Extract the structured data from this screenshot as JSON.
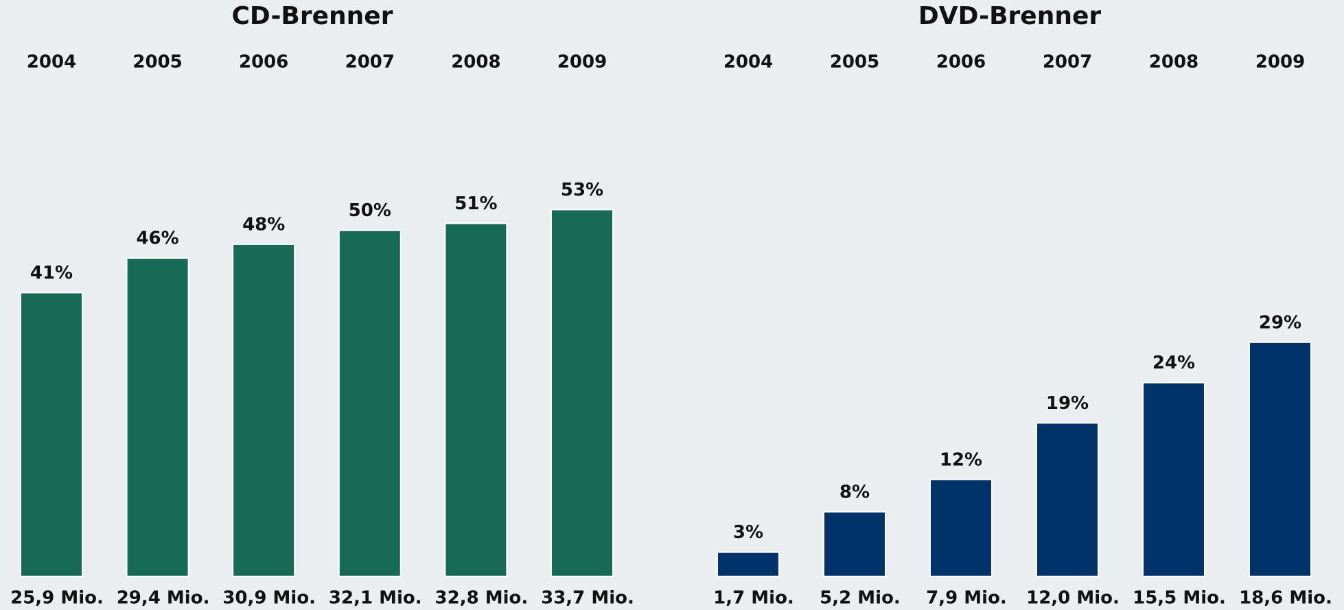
{
  "chart_data": [
    {
      "type": "bar",
      "title": "CD-Brenner",
      "categories": [
        "2004",
        "2005",
        "2006",
        "2007",
        "2008",
        "2009"
      ],
      "values": [
        41,
        46,
        48,
        50,
        51,
        53
      ],
      "value_labels": [
        "41%",
        "46%",
        "48%",
        "50%",
        "51%",
        "53%"
      ],
      "sales": {
        "values": [
          25.9,
          29.4,
          30.9,
          32.1,
          32.8,
          33.7
        ],
        "value_labels": [
          "25,9 Mio.",
          "29,4 Mio.",
          "30,9 Mio.",
          "32,1 Mio.",
          "32,8 Mio.",
          "33,7 Mio."
        ]
      },
      "color": "#176b55",
      "ylim": [
        0,
        70
      ]
    },
    {
      "type": "bar",
      "title": "DVD-Brenner",
      "categories": [
        "2004",
        "2005",
        "2006",
        "2007",
        "2008",
        "2009"
      ],
      "values": [
        3,
        8,
        12,
        19,
        24,
        29
      ],
      "value_labels": [
        "3%",
        "8%",
        "12%",
        "19%",
        "24%",
        "29%"
      ],
      "sales": {
        "values": [
          1.7,
          5.2,
          7.9,
          12.0,
          15.5,
          18.6
        ],
        "value_labels": [
          "1,7 Mio.",
          "5,2 Mio.",
          "7,9 Mio.",
          "12,0 Mio.",
          "15,5 Mio.",
          "18,6 Mio."
        ]
      },
      "color": "#00336a",
      "ylim": [
        0,
        60
      ]
    }
  ]
}
